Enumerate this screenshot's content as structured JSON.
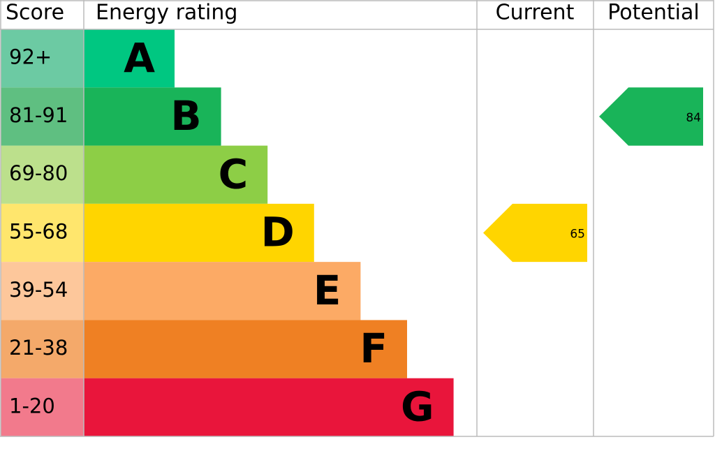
{
  "chart_data": {
    "type": "epc",
    "headers": {
      "score": "Score",
      "rating": "Energy rating",
      "current": "Current",
      "potential": "Potential"
    },
    "bands": [
      {
        "score": "92+",
        "rating": "A",
        "color": "#00c781",
        "score_color": "#6ccaa3"
      },
      {
        "score": "81-91",
        "rating": "B",
        "color": "#19b459",
        "score_color": "#5fbf81"
      },
      {
        "score": "69-80",
        "rating": "C",
        "color": "#8dce46",
        "score_color": "#bce08c"
      },
      {
        "score": "55-68",
        "rating": "D",
        "color": "#ffd500",
        "score_color": "#ffe66d"
      },
      {
        "score": "39-54",
        "rating": "E",
        "color": "#fcaa65",
        "score_color": "#fdc79b"
      },
      {
        "score": "21-38",
        "rating": "F",
        "color": "#ef8023",
        "score_color": "#f4a96a"
      },
      {
        "score": "1-20",
        "rating": "G",
        "color": "#e9153b",
        "score_color": "#f27a8c"
      }
    ],
    "current": 65,
    "potential": 84
  }
}
